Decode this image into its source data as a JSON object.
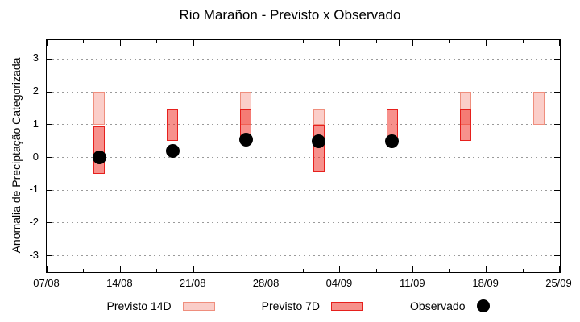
{
  "chart_data": {
    "type": "bar",
    "title": "Rio Marañon - Previsto x Observado",
    "ylabel": "Anomalia de Preciptação Categorizada",
    "xlabel": "",
    "grid": "horizontal-dotted",
    "ylim": [
      -3.55,
      3.6
    ],
    "yticks": [
      3,
      2,
      1,
      0,
      -1,
      -2,
      -3
    ],
    "xticks": [
      "07/08",
      "14/08",
      "21/08",
      "28/08",
      "04/09",
      "11/09",
      "18/09",
      "25/09"
    ],
    "series_info": [
      {
        "name": "Previsto 14D",
        "kind": "range-bar",
        "fill": "#facdc8",
        "border": "#ef8e7d"
      },
      {
        "name": "Previsto 7D",
        "kind": "range-bar",
        "fill": "#f6918b",
        "border": "#e6201d"
      },
      {
        "name": "Observado",
        "kind": "point",
        "color": "#000000"
      }
    ],
    "points": [
      {
        "date": "12/08",
        "previsto_14d": [
          1.0,
          2.0
        ],
        "previsto_7d": [
          -0.5,
          0.95
        ],
        "observado": 0.0
      },
      {
        "date": "19/08",
        "previsto_14d": null,
        "previsto_7d": [
          0.5,
          1.45
        ],
        "observado": 0.2
      },
      {
        "date": "26/08",
        "previsto_14d": [
          1.0,
          2.0
        ],
        "previsto_7d": [
          0.55,
          1.45
        ],
        "observado": 0.55
      },
      {
        "date": "02/09",
        "previsto_14d": [
          1.0,
          1.45
        ],
        "previsto_7d": [
          -0.45,
          1.0
        ],
        "observado": 0.5
      },
      {
        "date": "09/09",
        "previsto_14d": null,
        "previsto_7d": [
          0.5,
          1.45
        ],
        "observado": 0.5
      },
      {
        "date": "16/09",
        "previsto_14d": [
          1.0,
          2.0
        ],
        "previsto_7d": [
          0.5,
          1.45
        ],
        "observado": null
      },
      {
        "date": "23/09",
        "previsto_14d": [
          1.0,
          2.0
        ],
        "previsto_7d": null,
        "observado": null
      }
    ],
    "legend": [
      {
        "label": "Previsto 14D"
      },
      {
        "label": "Previsto 7D"
      },
      {
        "label": "Observado"
      }
    ],
    "legend_position": "bottom-center"
  }
}
